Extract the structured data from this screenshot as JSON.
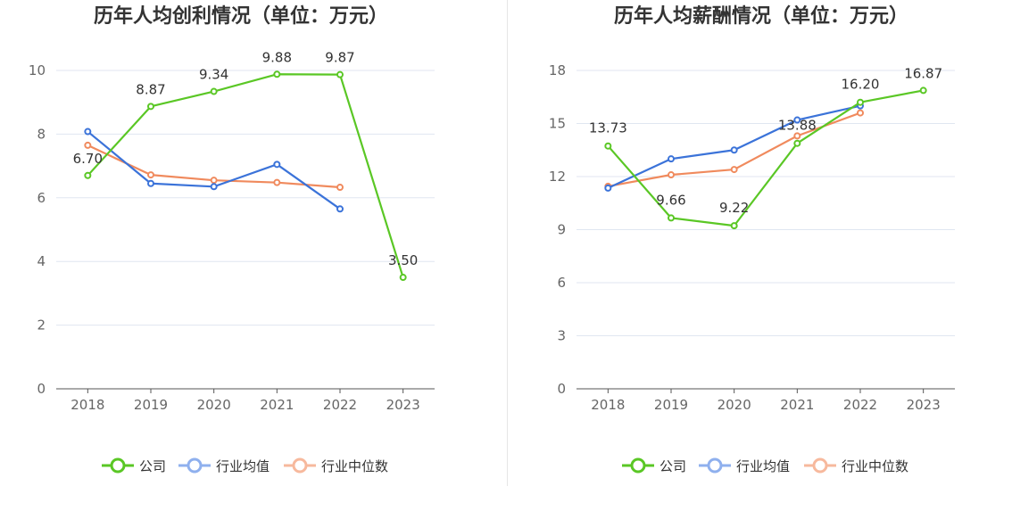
{
  "colors": {
    "company": "#5ac725",
    "industry_avg": "#3b73d9",
    "industry_median": "#f08a5d",
    "grid": "#e0e6f1",
    "axis": "#555555"
  },
  "legend": [
    "公司",
    "行业均值",
    "行业中位数"
  ],
  "chart_data": [
    {
      "type": "line",
      "title": "历年人均创利情况（单位：万元）",
      "x": [
        "2018",
        "2019",
        "2020",
        "2021",
        "2022",
        "2023"
      ],
      "ylim": [
        0,
        10
      ],
      "yticks": [
        0,
        2,
        4,
        6,
        8,
        10
      ],
      "grid": true,
      "legend_position": "bottom",
      "series": [
        {
          "name": "公司",
          "values": [
            6.7,
            8.87,
            9.34,
            9.88,
            9.87,
            3.5
          ],
          "labels": [
            "6.70",
            "8.87",
            "9.34",
            "9.88",
            "9.87",
            "3.50"
          ]
        },
        {
          "name": "行业均值",
          "values": [
            8.08,
            6.45,
            6.35,
            7.05,
            5.65,
            null
          ]
        },
        {
          "name": "行业中位数",
          "values": [
            7.65,
            6.72,
            6.55,
            6.48,
            6.33,
            null
          ]
        }
      ]
    },
    {
      "type": "line",
      "title": "历年人均薪酬情况（单位：万元）",
      "x": [
        "2018",
        "2019",
        "2020",
        "2021",
        "2022",
        "2023"
      ],
      "ylim": [
        0,
        18
      ],
      "yticks": [
        0,
        3,
        6,
        9,
        12,
        15,
        18
      ],
      "grid": true,
      "legend_position": "bottom",
      "series": [
        {
          "name": "公司",
          "values": [
            13.73,
            9.66,
            9.22,
            13.88,
            16.2,
            16.87
          ],
          "labels": [
            "13.73",
            "9.66",
            "9.22",
            "13.88",
            "16.20",
            "16.87"
          ]
        },
        {
          "name": "行业均值",
          "values": [
            11.35,
            13.0,
            13.5,
            15.2,
            16.0,
            null
          ]
        },
        {
          "name": "行业中位数",
          "values": [
            11.45,
            12.1,
            12.4,
            14.3,
            15.6,
            null
          ]
        }
      ]
    }
  ]
}
